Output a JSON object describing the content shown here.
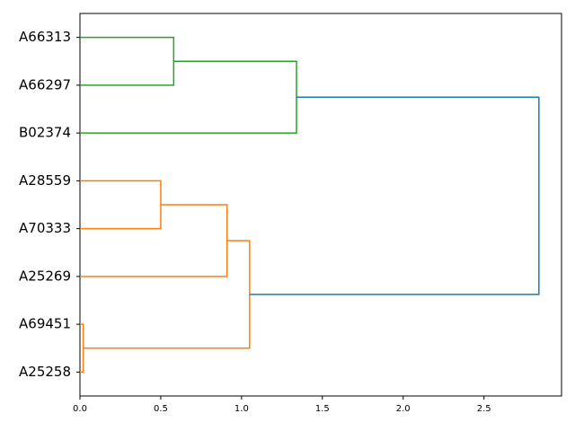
{
  "chart_data": {
    "type": "dendrogram",
    "leaves": [
      "A25258",
      "A69451",
      "A25269",
      "A70333",
      "A28559",
      "B02374",
      "A66297",
      "A66313"
    ],
    "merges": [
      {
        "children": [
          0,
          1
        ],
        "height": 0.02,
        "color": "#ff7f0e"
      },
      {
        "children": [
          3,
          4
        ],
        "height": 0.5,
        "color": "#ff7f0e"
      },
      {
        "children": [
          2,
          9
        ],
        "height": 0.91,
        "color": "#ff7f0e"
      },
      {
        "children": [
          8,
          10
        ],
        "height": 1.05,
        "color": "#ff7f0e"
      },
      {
        "children": [
          6,
          7
        ],
        "height": 0.58,
        "color": "#2ca02c"
      },
      {
        "children": [
          5,
          12
        ],
        "height": 1.34,
        "color": "#2ca02c"
      },
      {
        "children": [
          11,
          13
        ],
        "height": 2.84,
        "color": "#1f77b4"
      }
    ],
    "xlim": [
      0,
      2.98
    ],
    "xticks": [
      {
        "value": 0,
        "label": "0.0"
      },
      0.5,
      {
        "value": 1,
        "label": "1.0"
      },
      1.5,
      {
        "value": 2,
        "label": "2.0"
      },
      2.5
    ]
  }
}
